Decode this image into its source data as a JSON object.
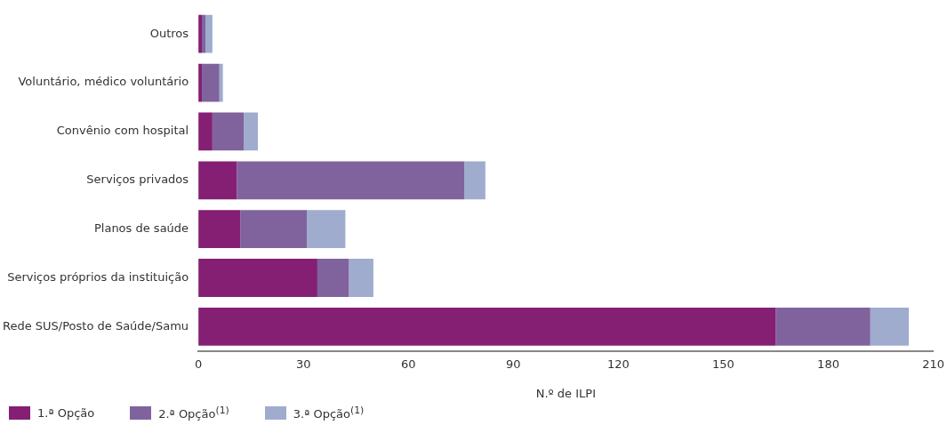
{
  "chart_data": {
    "type": "bar",
    "orientation": "horizontal",
    "stacked": true,
    "xlabel": "N.º de ILPI",
    "categories": [
      "Outros",
      "Voluntário, médico voluntário",
      "Convênio com hospital",
      "Serviços privados",
      "Planos de saúde",
      "Serviços próprios da instituição",
      "Rede SUS/Posto de Saúde/Samu"
    ],
    "series": [
      {
        "name": "1.ª Opção",
        "color": "#841f74",
        "values": [
          1,
          1,
          4,
          11,
          12,
          34,
          165
        ]
      },
      {
        "name": "2.ª Opção$^{(1)}$",
        "color": "#80639c",
        "values": [
          1,
          5,
          9,
          65,
          19,
          9,
          27
        ]
      },
      {
        "name": "3.ª Opção$^{(1)}$",
        "color": "#9facce",
        "values": [
          2,
          1,
          4,
          6,
          11,
          7,
          11
        ]
      }
    ],
    "xlim": [
      0,
      210
    ],
    "xticks": [
      0,
      30,
      60,
      90,
      120,
      150,
      180,
      210
    ],
    "grid": false,
    "legend": "bottom left"
  }
}
